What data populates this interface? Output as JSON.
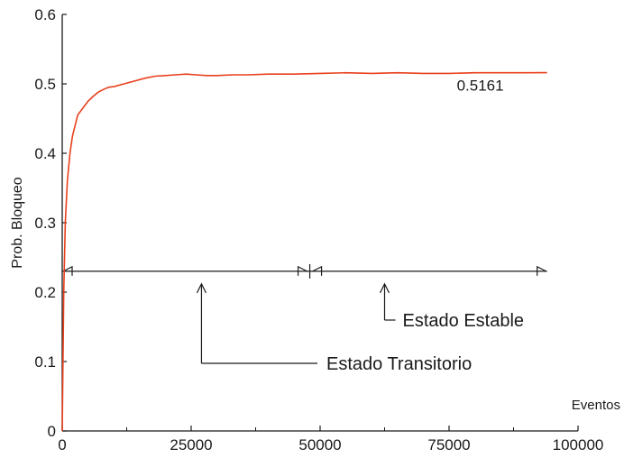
{
  "chart_data": {
    "type": "line",
    "title": "",
    "xlabel": "Eventos",
    "ylabel": "Prob. Bloqueo",
    "xlim": [
      0,
      100000
    ],
    "ylim": [
      0,
      0.6
    ],
    "xticks": [
      0,
      25000,
      50000,
      75000,
      100000
    ],
    "xtick_labels": [
      "0",
      "25000",
      "50000",
      "75000",
      "100000"
    ],
    "yticks": [
      0,
      0.1,
      0.2,
      0.3,
      0.4,
      0.5,
      0.6
    ],
    "ytick_labels": [
      "0",
      "0.1",
      "0.2",
      "0.3",
      "0.4",
      "0.5",
      "0.6"
    ],
    "grid": false,
    "series": [
      {
        "color": "#e8401c",
        "x": [
          0,
          300,
          600,
          1000,
          1500,
          2000,
          2500,
          3000,
          4000,
          5000,
          6000,
          7000,
          8000,
          9000,
          10000,
          12000,
          14000,
          16000,
          18000,
          20000,
          22000,
          24000,
          26000,
          28000,
          30000,
          33000,
          36000,
          40000,
          45000,
          50000,
          55000,
          60000,
          65000,
          70000,
          75000,
          80000,
          85000,
          90000,
          94000
        ],
        "y": [
          0.0,
          0.2,
          0.3,
          0.36,
          0.4,
          0.425,
          0.44,
          0.455,
          0.465,
          0.475,
          0.482,
          0.488,
          0.492,
          0.495,
          0.496,
          0.5,
          0.504,
          0.508,
          0.511,
          0.512,
          0.513,
          0.514,
          0.513,
          0.512,
          0.512,
          0.513,
          0.513,
          0.514,
          0.514,
          0.515,
          0.516,
          0.515,
          0.516,
          0.515,
          0.515,
          0.516,
          0.516,
          0.516,
          0.5161
        ]
      }
    ],
    "annotations": {
      "final_value": "0.5161",
      "transient_label": "Estado Transitorio",
      "stable_label": "Estado Estable",
      "transient_range": [
        0,
        48000
      ],
      "stable_range": [
        48000,
        94000
      ],
      "arrow_level": 0.23,
      "transient_pointer_x": 27000,
      "stable_pointer_x": 62500
    }
  }
}
